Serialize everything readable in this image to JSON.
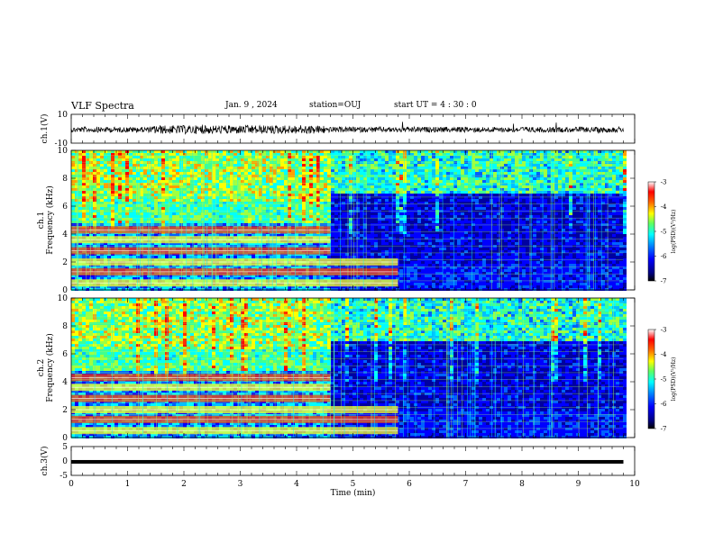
{
  "header": {
    "title": "VLF Spectra",
    "date": "Jan. 9 , 2024",
    "station": "station=OUJ",
    "start": "start UT =  4 : 30 : 0"
  },
  "colors": {
    "colormap": [
      "#000080",
      "#0000ff",
      "#0080ff",
      "#00ffff",
      "#80ff80",
      "#ffff00",
      "#ff8000",
      "#ff0000",
      "#800000",
      "#ffffff"
    ],
    "line_harmonic": "#a8ff60"
  },
  "chart_data": [
    {
      "type": "line",
      "name": "waveform-ch1",
      "ylabel": "ch.1(V)",
      "ylim": [
        -10,
        10
      ],
      "yticks": [
        "10",
        "-10"
      ],
      "description_level": 0
    },
    {
      "type": "heatmap",
      "name": "spectrogram-ch1",
      "ylabel_1": "ch.1",
      "ylabel_2": "Frequency (kHz)",
      "ylim": [
        0,
        10
      ],
      "yticks": [
        "0",
        "2",
        "4",
        "6",
        "8",
        "10"
      ],
      "xlim": [
        0,
        10
      ],
      "data_end_min": 9.8,
      "colorbar": {
        "label": "log(PSD)(V²/Hz)",
        "range": [
          -7,
          -3
        ],
        "ticks": [
          "-3",
          "-4",
          "-5",
          "-6",
          "-7"
        ]
      },
      "bands_khz": [
        0.5,
        1.3,
        2.0,
        2.8,
        3.6,
        4.3
      ],
      "band_end_min": 4.6,
      "lower_band_end_min": 5.8
    },
    {
      "type": "heatmap",
      "name": "spectrogram-ch2",
      "ylabel_1": "ch.2",
      "ylabel_2": "Frequency (kHz)",
      "ylim": [
        0,
        10
      ],
      "yticks": [
        "0",
        "2",
        "4",
        "6",
        "8",
        "10"
      ],
      "xlim": [
        0,
        10
      ],
      "data_end_min": 9.8,
      "colorbar": {
        "label": "log(PSD)(V²/Hz)",
        "range": [
          -7,
          -3
        ],
        "ticks": [
          "-3",
          "-4",
          "-5",
          "-6",
          "-7"
        ]
      },
      "bands_khz": [
        0.5,
        1.3,
        2.0,
        2.8,
        3.6,
        4.3
      ],
      "band_end_min": 4.6,
      "lower_band_end_min": 5.8
    },
    {
      "type": "line",
      "name": "waveform-ch3",
      "ylabel": "ch.3(V)",
      "ylim": [
        -5,
        5
      ],
      "yticks": [
        "5",
        "0",
        "-5"
      ],
      "level": -0.3
    }
  ],
  "x_axis": {
    "label": "Time (min)",
    "ticks": [
      "0",
      "1",
      "2",
      "3",
      "4",
      "5",
      "6",
      "7",
      "8",
      "9",
      "10"
    ],
    "range": [
      0,
      10
    ]
  }
}
